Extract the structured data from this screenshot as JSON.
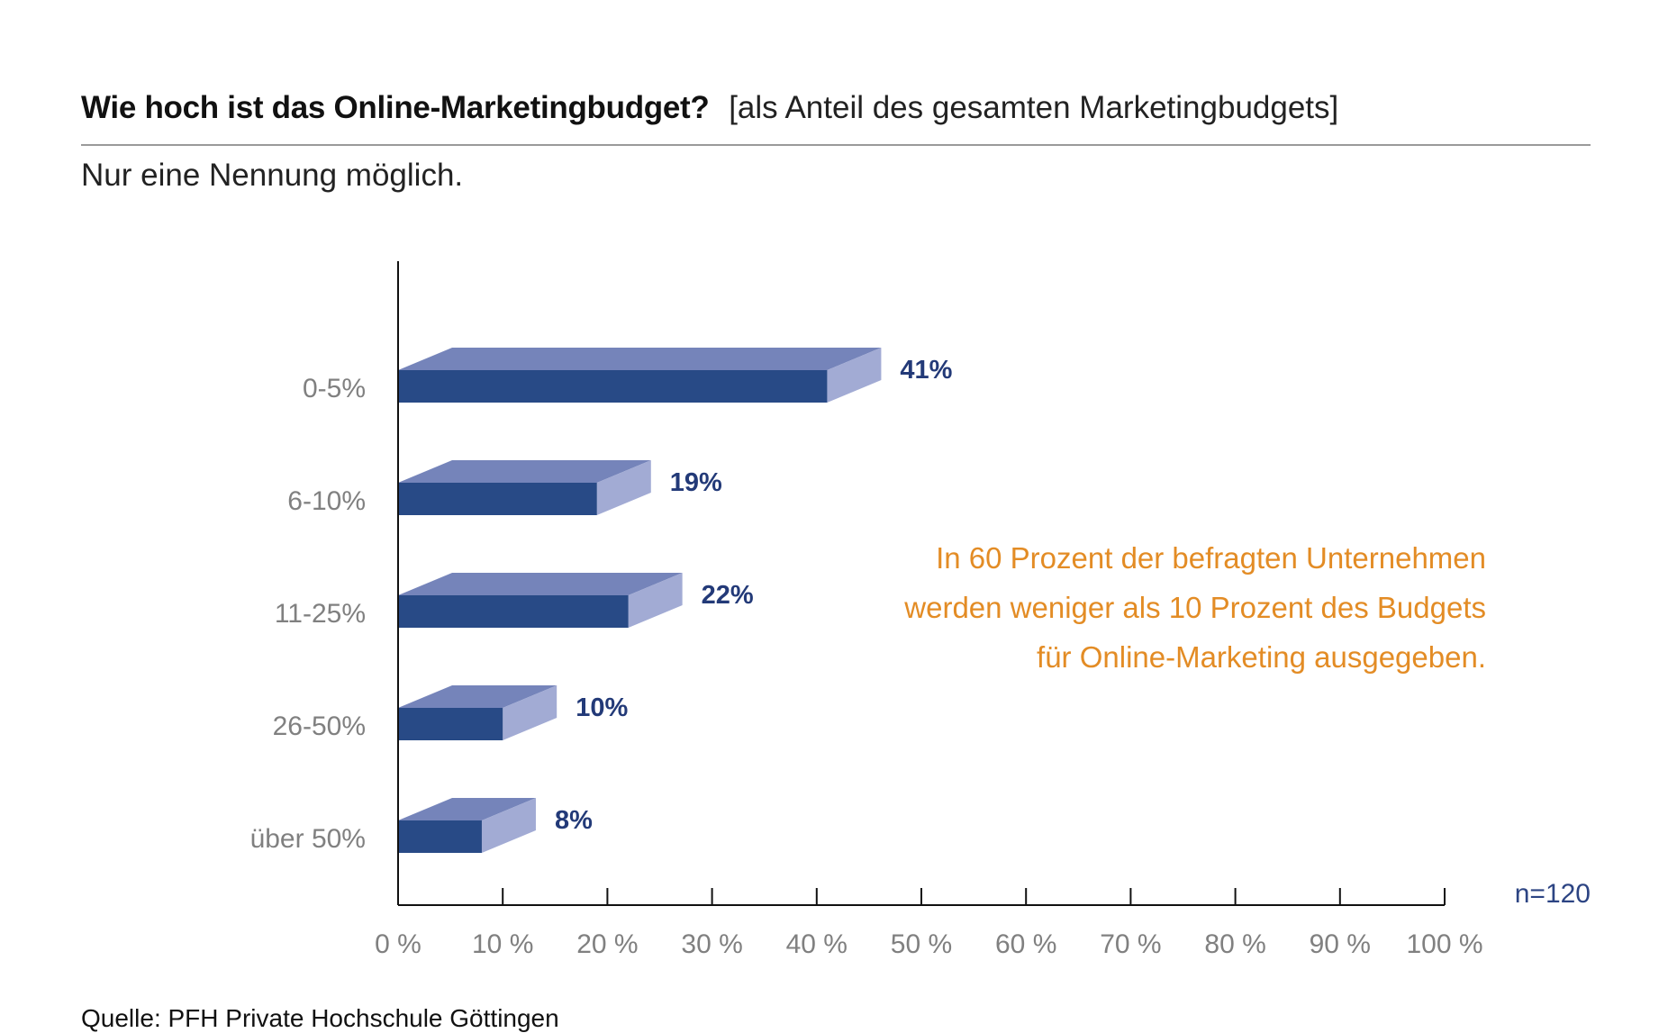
{
  "header": {
    "title": "Wie hoch ist das Online-Marketingbudget?",
    "title_note": "[als Anteil des gesamten Marketingbudgets]",
    "subtitle": "Nur eine Nennung möglich."
  },
  "footer": {
    "source": "Quelle: PFH Private Hochschule Göttingen"
  },
  "colors": {
    "bar_front": "#284a86",
    "bar_top": "#7584ba",
    "bar_side": "#a2abd4",
    "value_label": "#233a78",
    "category_label": "#808080",
    "annotation": "#e38c25",
    "n_label": "#2c4483",
    "axis": "#111111"
  },
  "chart_data": {
    "type": "bar",
    "orientation": "horizontal",
    "style": "3d",
    "categories": [
      "0-5%",
      "6-10%",
      "11-25%",
      "26-50%",
      "über 50%"
    ],
    "values": [
      41,
      19,
      22,
      10,
      8
    ],
    "value_labels": [
      "41%",
      "19%",
      "22%",
      "10%",
      "8%"
    ],
    "xlim": [
      0,
      100
    ],
    "xticks": [
      0,
      10,
      20,
      30,
      40,
      50,
      60,
      70,
      80,
      90,
      100
    ],
    "xtick_labels": [
      "0 %",
      "10 %",
      "20 %",
      "30 %",
      "40 %",
      "50 %",
      "60 %",
      "70 %",
      "80 %",
      "90 %",
      "100 %"
    ],
    "grid": false,
    "legend": "none",
    "sample_size_label": "n=120",
    "annotation": [
      "In 60 Prozent der befragten Unternehmen",
      "werden weniger als 10 Prozent des Budgets",
      "für Online-Marketing ausgegeben."
    ]
  }
}
